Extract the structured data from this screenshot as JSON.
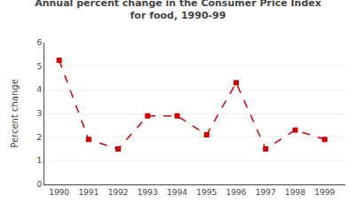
{
  "chart_data": {
    "type": "line",
    "title": "Annual percent change in the Consumer Price Index\nfor food, 1990-99",
    "ylabel": "Percent change",
    "x": [
      1990,
      1991,
      1992,
      1993,
      1994,
      1995,
      1996,
      1997,
      1998,
      1999
    ],
    "values": [
      5.25,
      1.9,
      1.5,
      2.9,
      2.9,
      2.1,
      4.3,
      1.5,
      2.3,
      1.9
    ],
    "xlim": [
      1989.5,
      1999.7
    ],
    "xticks": [
      1990,
      1991,
      1992,
      1993,
      1994,
      1995,
      1996,
      1997,
      1998,
      1999
    ],
    "ylim": [
      0,
      6
    ],
    "yticks": [
      0,
      1,
      2,
      3,
      4,
      5,
      6
    ],
    "color": "#cc0000",
    "marker": "square",
    "line_style": "dashed",
    "grid": true
  }
}
